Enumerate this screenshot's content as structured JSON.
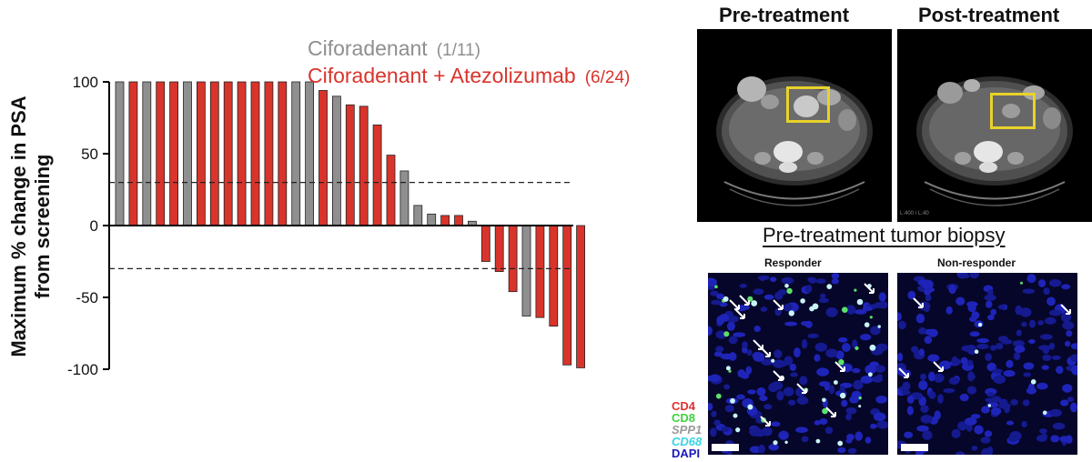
{
  "chart_data": {
    "type": "bar",
    "ylabel_line1": "Maximum % change in PSA",
    "ylabel_line2": "from screening",
    "ylim": [
      -100,
      100
    ],
    "yticks": [
      100,
      50,
      0,
      -50,
      -100
    ],
    "reference_lines": [
      30,
      -30
    ],
    "series": [
      {
        "name": "Ciforadenant",
        "count_label": "(1/11)",
        "color": "#8f8f8f"
      },
      {
        "name": "Ciforadenant + Atezolizumab",
        "count_label": "(6/24)",
        "color": "#d9342b"
      }
    ],
    "bars": [
      {
        "value": 100,
        "series": 0
      },
      {
        "value": 100,
        "series": 1
      },
      {
        "value": 100,
        "series": 0
      },
      {
        "value": 100,
        "series": 1
      },
      {
        "value": 100,
        "series": 1
      },
      {
        "value": 100,
        "series": 0
      },
      {
        "value": 100,
        "series": 1
      },
      {
        "value": 100,
        "series": 1
      },
      {
        "value": 100,
        "series": 1
      },
      {
        "value": 100,
        "series": 1
      },
      {
        "value": 100,
        "series": 1
      },
      {
        "value": 100,
        "series": 1
      },
      {
        "value": 100,
        "series": 1
      },
      {
        "value": 100,
        "series": 0
      },
      {
        "value": 100,
        "series": 0
      },
      {
        "value": 94,
        "series": 1
      },
      {
        "value": 90,
        "series": 0
      },
      {
        "value": 84,
        "series": 1
      },
      {
        "value": 83,
        "series": 1
      },
      {
        "value": 70,
        "series": 1
      },
      {
        "value": 49,
        "series": 1
      },
      {
        "value": 38,
        "series": 0
      },
      {
        "value": 14,
        "series": 0
      },
      {
        "value": 8,
        "series": 0
      },
      {
        "value": 7,
        "series": 1
      },
      {
        "value": 7,
        "series": 1
      },
      {
        "value": 3,
        "series": 0
      },
      {
        "value": -25,
        "series": 1
      },
      {
        "value": -32,
        "series": 1
      },
      {
        "value": -46,
        "series": 1
      },
      {
        "value": -63,
        "series": 0
      },
      {
        "value": -64,
        "series": 1
      },
      {
        "value": -70,
        "series": 1
      },
      {
        "value": -97,
        "series": 1
      },
      {
        "value": -99,
        "series": 1
      }
    ]
  },
  "imaging": {
    "pre_label": "Pre-treatment",
    "post_label": "Post-treatment",
    "scan_note": "L:400 / L:40",
    "roi_color": "#e8d22a"
  },
  "biopsy": {
    "title": "Pre-treatment tumor biopsy",
    "left_label": "Responder",
    "right_label": "Non-responder",
    "stains": [
      {
        "label": "CD4",
        "color": "#e03030"
      },
      {
        "label": "CD8",
        "color": "#3fd13f"
      },
      {
        "label": "SPP1",
        "color": "#9a9a9a"
      },
      {
        "label": "CD68",
        "color": "#37d4e6"
      },
      {
        "label": "DAPI",
        "color": "#1a1ab8"
      }
    ]
  }
}
